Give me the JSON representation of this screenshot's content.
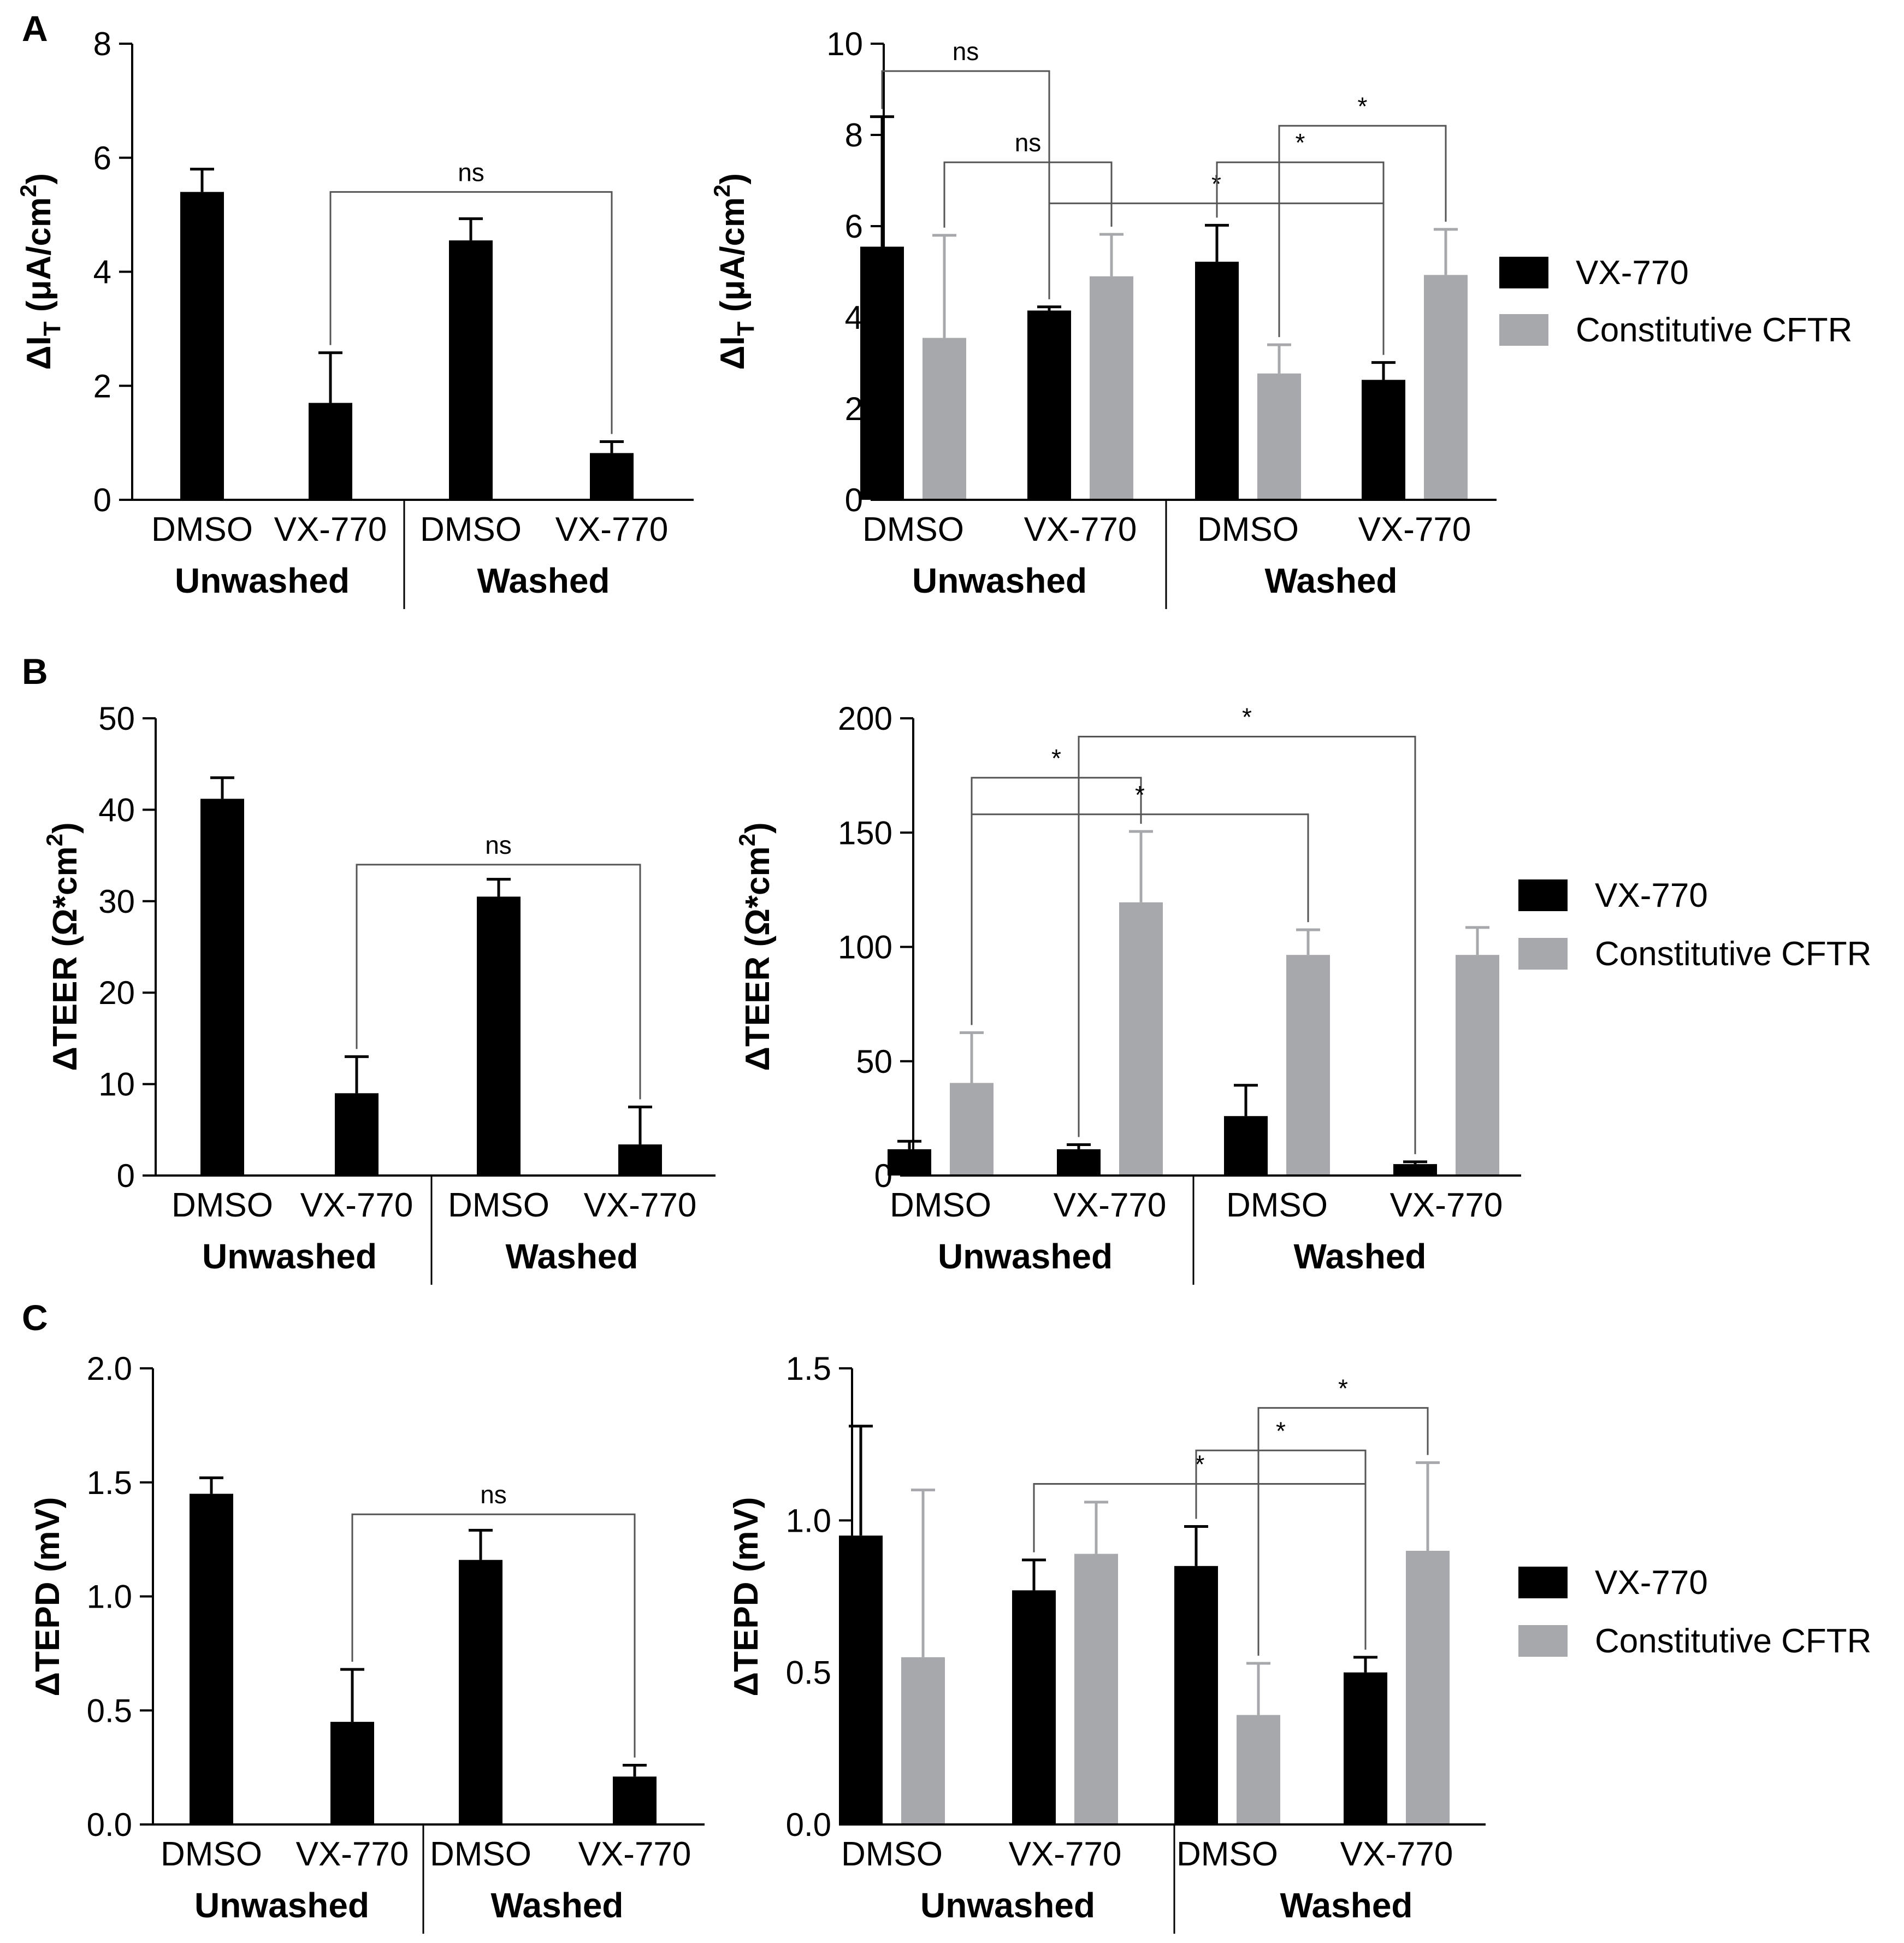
{
  "figure": {
    "panel_letters": [
      "A",
      "B",
      "C"
    ]
  },
  "colors": {
    "vx770": "#000000",
    "constitutive": "#a7a8ab",
    "axis": "#000000",
    "bracket": "#555555"
  },
  "chart_data": [
    {
      "id": "A-left",
      "panel": "A",
      "type": "bar",
      "ylabel_main": "ΔI",
      "ylabel_sub": "T",
      "ylabel_rest": " (μA/cm",
      "ylabel_sup": "2",
      "ylabel_end": ")",
      "ylim": [
        0,
        8
      ],
      "yticks": [
        0,
        2,
        4,
        6,
        8
      ],
      "ytick_labels": [
        "0",
        "2",
        "4",
        "6",
        "8"
      ],
      "categories": [
        "DMSO",
        "VX-770",
        "DMSO",
        "VX-770"
      ],
      "groups": [
        "Unwashed",
        "Washed"
      ],
      "series": [
        {
          "name": "VX-770",
          "values": [
            5.4,
            1.7,
            4.55,
            0.82
          ],
          "errors": [
            0.4,
            0.88,
            0.38,
            0.2
          ]
        }
      ],
      "brackets": [
        {
          "from": 1,
          "to": 3,
          "label": "ns",
          "level": 5.4
        }
      ]
    },
    {
      "id": "A-right",
      "panel": "A",
      "type": "bar",
      "ylabel_main": "ΔI",
      "ylabel_sub": "T",
      "ylabel_rest": " (μA/cm",
      "ylabel_sup": "2",
      "ylabel_end": ")",
      "ylim": [
        0,
        10
      ],
      "yticks": [
        0,
        2,
        4,
        6,
        8,
        10
      ],
      "ytick_labels": [
        "0",
        "2",
        "4",
        "6",
        "8",
        "10"
      ],
      "categories": [
        "DMSO",
        "VX-770",
        "DMSO",
        "VX-770"
      ],
      "groups": [
        "Unwashed",
        "Washed"
      ],
      "legend": [
        "VX-770",
        "Constitutive CFTR"
      ],
      "series": [
        {
          "name": "VX-770",
          "values": [
            5.55,
            4.15,
            5.22,
            2.63
          ],
          "errors": [
            2.85,
            0.08,
            0.8,
            0.38
          ]
        },
        {
          "name": "Constitutive CFTR",
          "values": [
            3.55,
            4.9,
            2.77,
            4.93
          ],
          "errors": [
            2.25,
            0.92,
            0.63,
            1.0
          ]
        }
      ],
      "brackets": [
        {
          "from": 0,
          "to": 2,
          "label": "ns",
          "level": 9.4
        },
        {
          "from": 1,
          "to": 3,
          "label": "ns",
          "level": 7.4
        },
        {
          "from": 2,
          "to": 6,
          "label": "*",
          "level": 6.5
        },
        {
          "from": 4,
          "to": 6,
          "label": "*",
          "level": 7.4
        },
        {
          "from": 5,
          "to": 7,
          "label": "*",
          "level": 8.2
        }
      ]
    },
    {
      "id": "B-left",
      "panel": "B",
      "type": "bar",
      "ylabel_main": "ΔTEER (Ω*cm",
      "ylabel_sup": "2",
      "ylabel_end": ")",
      "ylim": [
        0,
        50
      ],
      "yticks": [
        0,
        10,
        20,
        30,
        40,
        50
      ],
      "ytick_labels": [
        "0",
        "10",
        "20",
        "30",
        "40",
        "50"
      ],
      "categories": [
        "DMSO",
        "VX-770",
        "DMSO",
        "VX-770"
      ],
      "groups": [
        "Unwashed",
        "Washed"
      ],
      "series": [
        {
          "name": "VX-770",
          "values": [
            41.2,
            9.0,
            30.5,
            3.4
          ],
          "errors": [
            2.3,
            4.0,
            1.9,
            4.1
          ]
        }
      ],
      "brackets": [
        {
          "from": 1,
          "to": 3,
          "label": "ns",
          "level": 34.0
        }
      ]
    },
    {
      "id": "B-right",
      "panel": "B",
      "type": "bar",
      "ylabel_main": "ΔTEER (Ω*cm",
      "ylabel_sup": "2",
      "ylabel_end": ")",
      "ylim": [
        0,
        200
      ],
      "yticks": [
        0,
        50,
        100,
        150,
        200
      ],
      "ytick_labels": [
        "0",
        "50",
        "100",
        "150",
        "200"
      ],
      "categories": [
        "DMSO",
        "VX-770",
        "DMSO",
        "VX-770"
      ],
      "groups": [
        "Unwashed",
        "Washed"
      ],
      "legend": [
        "VX-770",
        "Constitutive CFTR"
      ],
      "series": [
        {
          "name": "VX-770",
          "values": [
            11.5,
            11.5,
            26.0,
            5.0
          ],
          "errors": [
            3.5,
            2.0,
            13.5,
            1.0
          ]
        },
        {
          "name": "Constitutive CFTR",
          "values": [
            40.5,
            119.5,
            96.5,
            96.5
          ],
          "errors": [
            22.0,
            31.0,
            11.0,
            12.0
          ]
        }
      ],
      "brackets": [
        {
          "from": 1,
          "to": 3,
          "label": "*",
          "level": 174
        },
        {
          "from": 1,
          "to": 5,
          "label": "*",
          "level": 158
        },
        {
          "from": 2,
          "to": 6,
          "label": "*",
          "level": 192
        }
      ]
    },
    {
      "id": "C-left",
      "panel": "C",
      "type": "bar",
      "ylabel_main": "ΔTEPD (mV)",
      "ylim": [
        0,
        2.0
      ],
      "yticks": [
        0,
        0.5,
        1.0,
        1.5,
        2.0
      ],
      "ytick_labels": [
        "0.0",
        "0.5",
        "1.0",
        "1.5",
        "2.0"
      ],
      "categories": [
        "DMSO",
        "VX-770",
        "DMSO",
        "VX-770"
      ],
      "groups": [
        "Unwashed",
        "Washed"
      ],
      "series": [
        {
          "name": "VX-770",
          "values": [
            1.45,
            0.45,
            1.16,
            0.21
          ],
          "errors": [
            0.07,
            0.23,
            0.13,
            0.05
          ]
        }
      ],
      "brackets": [
        {
          "from": 1,
          "to": 3,
          "label": "ns",
          "level": 1.36
        }
      ]
    },
    {
      "id": "C-right",
      "panel": "C",
      "type": "bar",
      "ylabel_main": "ΔTEPD (mV)",
      "ylim": [
        0,
        1.5
      ],
      "yticks": [
        0,
        0.5,
        1.0,
        1.5
      ],
      "ytick_labels": [
        "0.0",
        "0.5",
        "1.0",
        "1.5"
      ],
      "categories": [
        "DMSO",
        "VX-770",
        "DMSO",
        "VX-770"
      ],
      "groups": [
        "Unwashed",
        "Washed"
      ],
      "legend": [
        "VX-770",
        "Constitutive CFTR"
      ],
      "series": [
        {
          "name": "VX-770",
          "values": [
            0.95,
            0.77,
            0.85,
            0.5
          ],
          "errors": [
            0.36,
            0.1,
            0.13,
            0.05
          ]
        },
        {
          "name": "Constitutive CFTR",
          "values": [
            0.55,
            0.89,
            0.36,
            0.9
          ],
          "errors": [
            0.55,
            0.17,
            0.17,
            0.29
          ]
        }
      ],
      "brackets": [
        {
          "from": 2,
          "to": 6,
          "label": "*",
          "level": 1.12
        },
        {
          "from": 4,
          "to": 6,
          "label": "*",
          "level": 1.23
        },
        {
          "from": 5,
          "to": 7,
          "label": "*",
          "level": 1.37
        }
      ]
    }
  ]
}
